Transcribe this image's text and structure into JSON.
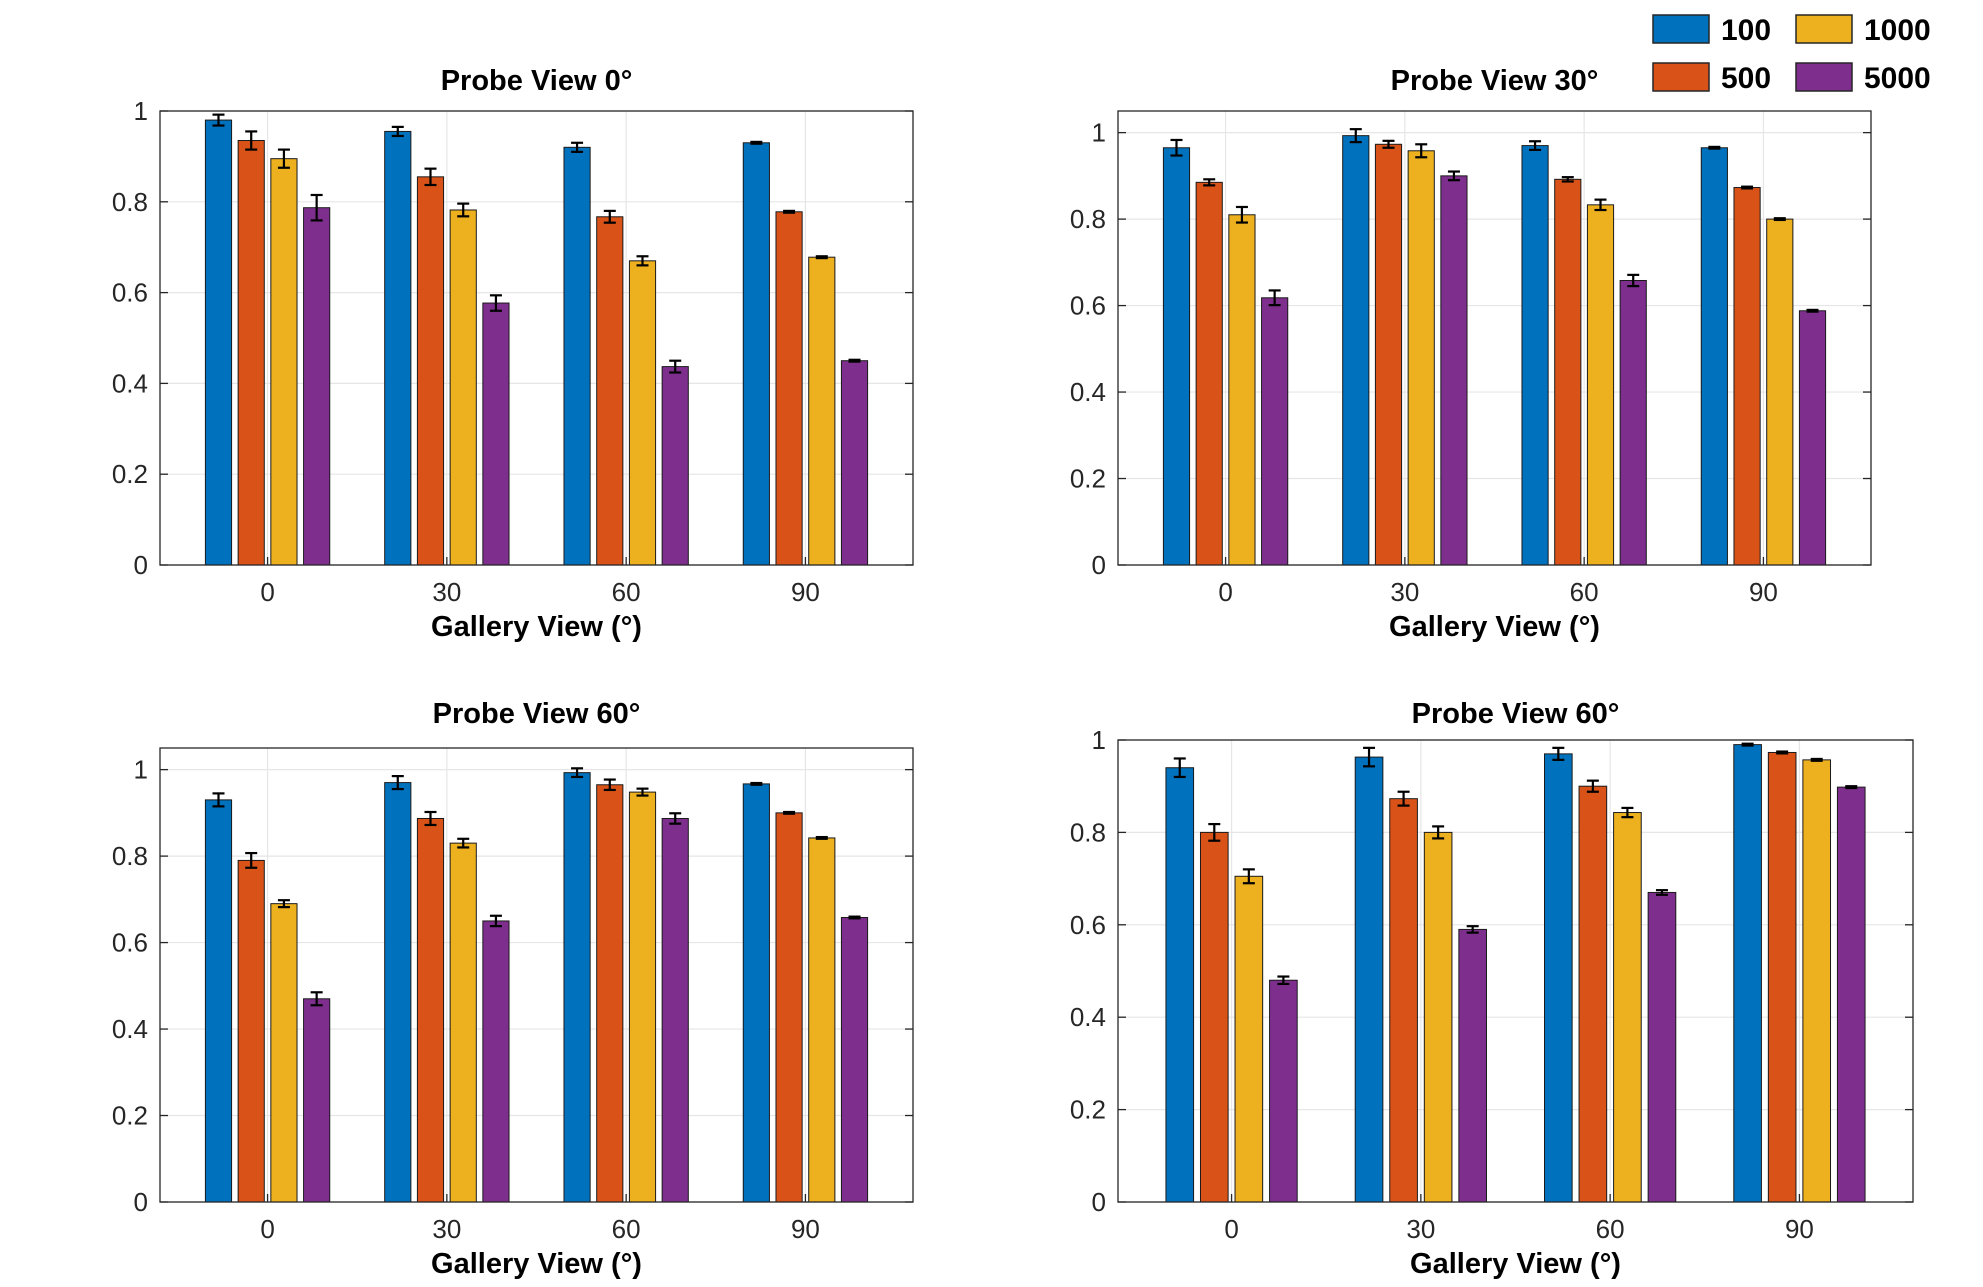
{
  "legend": {
    "location": "top-right",
    "entries": [
      {
        "label": "100",
        "color": "#0072BD"
      },
      {
        "label": "500",
        "color": "#D95319"
      },
      {
        "label": "1000",
        "color": "#EDB120"
      },
      {
        "label": "5000",
        "color": "#7E2F8E"
      }
    ]
  },
  "chart_data": [
    {
      "type": "bar",
      "title": "Probe View 0°",
      "xlabel": "Gallery View (°)",
      "ylabel": "",
      "ylim": [
        0,
        1
      ],
      "yticks": [
        "0",
        "0.2",
        "0.4",
        "0.6",
        "0.8",
        "1"
      ],
      "categories": [
        "0",
        "30",
        "60",
        "90"
      ],
      "grid": true,
      "series": [
        {
          "name": "100",
          "values": [
            0.98,
            0.955,
            0.92,
            0.93
          ],
          "errors": [
            0.012,
            0.01,
            0.01,
            0.002
          ]
        },
        {
          "name": "500",
          "values": [
            0.935,
            0.855,
            0.767,
            0.778
          ],
          "errors": [
            0.02,
            0.018,
            0.013,
            0.002
          ]
        },
        {
          "name": "1000",
          "values": [
            0.895,
            0.782,
            0.67,
            0.678
          ],
          "errors": [
            0.02,
            0.014,
            0.01,
            0.002
          ]
        },
        {
          "name": "5000",
          "values": [
            0.787,
            0.577,
            0.437,
            0.45
          ],
          "errors": [
            0.028,
            0.017,
            0.013,
            0.002
          ]
        }
      ]
    },
    {
      "type": "bar",
      "title": "Probe View 30°",
      "xlabel": "Gallery View (°)",
      "ylabel": "",
      "ylim": [
        0,
        1.05
      ],
      "yticks": [
        "0",
        "0.2",
        "0.4",
        "0.6",
        "0.8",
        "1"
      ],
      "categories": [
        "0",
        "30",
        "60",
        "90"
      ],
      "grid": true,
      "series": [
        {
          "name": "100",
          "values": [
            0.965,
            0.993,
            0.97,
            0.965
          ],
          "errors": [
            0.018,
            0.015,
            0.01,
            0.002
          ]
        },
        {
          "name": "500",
          "values": [
            0.885,
            0.973,
            0.892,
            0.873
          ],
          "errors": [
            0.007,
            0.008,
            0.005,
            0.002
          ]
        },
        {
          "name": "1000",
          "values": [
            0.81,
            0.958,
            0.833,
            0.8
          ],
          "errors": [
            0.018,
            0.015,
            0.012,
            0.002
          ]
        },
        {
          "name": "5000",
          "values": [
            0.618,
            0.9,
            0.658,
            0.588
          ],
          "errors": [
            0.017,
            0.01,
            0.013,
            0.002
          ]
        }
      ]
    },
    {
      "type": "bar",
      "title": "Probe View 60°",
      "xlabel": "Gallery View (°)",
      "ylabel": "",
      "ylim": [
        0,
        1.05
      ],
      "yticks": [
        "0",
        "0.2",
        "0.4",
        "0.6",
        "0.8",
        "1"
      ],
      "categories": [
        "0",
        "30",
        "60",
        "90"
      ],
      "grid": true,
      "series": [
        {
          "name": "100",
          "values": [
            0.93,
            0.97,
            0.993,
            0.967
          ],
          "errors": [
            0.015,
            0.015,
            0.01,
            0.002
          ]
        },
        {
          "name": "500",
          "values": [
            0.79,
            0.887,
            0.965,
            0.9
          ],
          "errors": [
            0.017,
            0.015,
            0.012,
            0.002
          ]
        },
        {
          "name": "1000",
          "values": [
            0.69,
            0.83,
            0.948,
            0.842
          ],
          "errors": [
            0.008,
            0.01,
            0.008,
            0.002
          ]
        },
        {
          "name": "5000",
          "values": [
            0.47,
            0.65,
            0.887,
            0.658
          ],
          "errors": [
            0.015,
            0.012,
            0.012,
            0.002
          ]
        }
      ]
    },
    {
      "type": "bar",
      "title": "Probe View 60°",
      "xlabel": "Gallery View (°)",
      "ylabel": "",
      "ylim": [
        0,
        1
      ],
      "yticks": [
        "0",
        "0.2",
        "0.4",
        "0.6",
        "0.8",
        "1"
      ],
      "categories": [
        "0",
        "30",
        "60",
        "90"
      ],
      "grid": true,
      "series": [
        {
          "name": "100",
          "values": [
            0.94,
            0.963,
            0.97,
            0.99
          ],
          "errors": [
            0.02,
            0.02,
            0.013,
            0.002
          ]
        },
        {
          "name": "500",
          "values": [
            0.8,
            0.873,
            0.9,
            0.973
          ],
          "errors": [
            0.018,
            0.015,
            0.012,
            0.002
          ]
        },
        {
          "name": "1000",
          "values": [
            0.705,
            0.8,
            0.843,
            0.957
          ],
          "errors": [
            0.015,
            0.013,
            0.01,
            0.002
          ]
        },
        {
          "name": "5000",
          "values": [
            0.48,
            0.59,
            0.67,
            0.898
          ],
          "errors": [
            0.008,
            0.007,
            0.005,
            0.002
          ]
        }
      ]
    }
  ]
}
